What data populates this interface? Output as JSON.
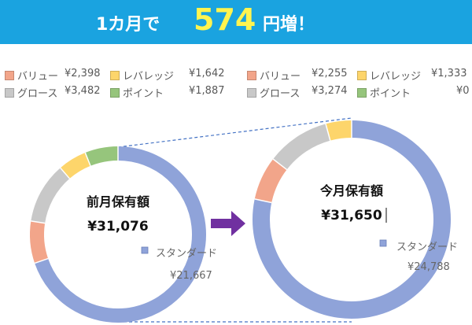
{
  "banner": {
    "prefix": "1カ月で",
    "amount": "574",
    "suffix": "円増！"
  },
  "colors": {
    "banner_bg": "#1aa3e0",
    "amount": "#fff44f",
    "value": "#f2a58a",
    "leverage": "#fdd56b",
    "growth": "#c8c8c8",
    "point": "#96c57c",
    "standard": "#8fa3d9",
    "arrow": "#7030a0"
  },
  "legend_left": [
    {
      "label": "バリュー",
      "value": "¥2,398",
      "color_key": "value"
    },
    {
      "label": "レバレッジ",
      "value": "¥1,642",
      "color_key": "leverage"
    },
    {
      "label": "グロース",
      "value": "¥3,482",
      "color_key": "growth"
    },
    {
      "label": "ポイント",
      "value": "¥1,887",
      "color_key": "point"
    }
  ],
  "legend_right": [
    {
      "label": "バリュー",
      "value": "¥2,255",
      "color_key": "value"
    },
    {
      "label": "レバレッジ",
      "value": "¥1,333",
      "color_key": "leverage"
    },
    {
      "label": "グロース",
      "value": "¥3,274",
      "color_key": "growth"
    },
    {
      "label": "ポイント",
      "value": "¥0",
      "color_key": "point"
    }
  ],
  "chart_data": [
    {
      "type": "pie",
      "donut": true,
      "title": "前月保有額",
      "total_label": "¥31,076",
      "slices": [
        {
          "name": "スタンダード",
          "value": 21667,
          "value_label": "¥21,667",
          "color_key": "standard"
        },
        {
          "name": "バリュー",
          "value": 2398,
          "color_key": "value"
        },
        {
          "name": "グロース",
          "value": 3482,
          "color_key": "growth"
        },
        {
          "name": "レバレッジ",
          "value": 1642,
          "color_key": "leverage"
        },
        {
          "name": "ポイント",
          "value": 1887,
          "color_key": "point"
        }
      ],
      "callout": {
        "label": "スタンダード",
        "value": "¥21,667"
      }
    },
    {
      "type": "pie",
      "donut": true,
      "title": "今月保有額",
      "total_label": "¥31,650",
      "slices": [
        {
          "name": "スタンダード",
          "value": 24788,
          "value_label": "¥24,788",
          "color_key": "standard"
        },
        {
          "name": "バリュー",
          "value": 2255,
          "color_key": "value"
        },
        {
          "name": "グロース",
          "value": 3274,
          "color_key": "growth"
        },
        {
          "name": "レバレッジ",
          "value": 1333,
          "color_key": "leverage"
        },
        {
          "name": "ポイント",
          "value": 0,
          "color_key": "point"
        }
      ],
      "callout": {
        "label": "スタンダード",
        "value": "¥24,788"
      }
    }
  ]
}
